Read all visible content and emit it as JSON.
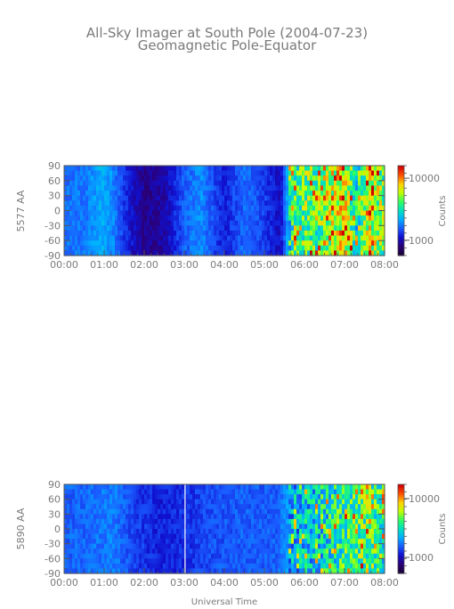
{
  "title": "All-Sky Imager at South Pole (2004-07-23)",
  "subtitle": "Geomagnetic Pole-Equator",
  "xlabel": "Universal Time",
  "colorbar_label": "Counts",
  "colormap": [
    "#1a0038",
    "#2a007a",
    "#1010d0",
    "#1a5cff",
    "#00b0ff",
    "#00e0c0",
    "#30ff60",
    "#c0ff00",
    "#ffd000",
    "#ff5000",
    "#d00000"
  ],
  "chart_data": [
    {
      "type": "heatmap",
      "ylabel": "5577 AA",
      "x_ticks": [
        "00:00",
        "01:00",
        "02:00",
        "03:00",
        "04:00",
        "05:00",
        "06:00",
        "07:00",
        "08:00"
      ],
      "y_ticks": [
        90,
        60,
        30,
        0,
        -30,
        -60,
        -90
      ],
      "ylim": [
        -90,
        90
      ],
      "xlim_hours": [
        0,
        8
      ],
      "colorbar_ticks": [
        "10000",
        "1000"
      ],
      "colorbar_log": true,
      "intensity_profile": [
        {
          "t": 0.0,
          "v": 0.32
        },
        {
          "t": 0.6,
          "v": 0.34
        },
        {
          "t": 0.9,
          "v": 0.4
        },
        {
          "t": 1.2,
          "v": 0.36
        },
        {
          "t": 1.6,
          "v": 0.22
        },
        {
          "t": 2.0,
          "v": 0.12
        },
        {
          "t": 2.5,
          "v": 0.15
        },
        {
          "t": 3.0,
          "v": 0.3
        },
        {
          "t": 3.4,
          "v": 0.36
        },
        {
          "t": 3.8,
          "v": 0.26
        },
        {
          "t": 4.0,
          "v": 0.22
        },
        {
          "t": 4.5,
          "v": 0.32
        },
        {
          "t": 5.0,
          "v": 0.26
        },
        {
          "t": 5.4,
          "v": 0.18
        },
        {
          "t": 5.7,
          "v": 0.55
        },
        {
          "t": 6.0,
          "v": 0.62
        },
        {
          "t": 6.3,
          "v": 0.58
        },
        {
          "t": 6.6,
          "v": 0.66
        },
        {
          "t": 7.0,
          "v": 0.75
        },
        {
          "t": 7.3,
          "v": 0.5
        },
        {
          "t": 7.6,
          "v": 0.72
        },
        {
          "t": 8.0,
          "v": 0.62
        }
      ]
    },
    {
      "type": "heatmap",
      "ylabel": "5890 AA",
      "x_ticks": [
        "00:00",
        "01:00",
        "02:00",
        "03:00",
        "04:00",
        "05:00",
        "06:00",
        "07:00",
        "08:00"
      ],
      "y_ticks": [
        90,
        60,
        30,
        0,
        -30,
        -60,
        -90
      ],
      "ylim": [
        -90,
        90
      ],
      "xlim_hours": [
        0,
        8
      ],
      "colorbar_ticks": [
        "10000",
        "1000"
      ],
      "colorbar_log": true,
      "intensity_profile": [
        {
          "t": 0.0,
          "v": 0.3
        },
        {
          "t": 0.7,
          "v": 0.32
        },
        {
          "t": 1.2,
          "v": 0.34
        },
        {
          "t": 1.8,
          "v": 0.26
        },
        {
          "t": 2.4,
          "v": 0.22
        },
        {
          "t": 3.0,
          "v": 0.24
        },
        {
          "t": 3.6,
          "v": 0.28
        },
        {
          "t": 4.5,
          "v": 0.3
        },
        {
          "t": 5.3,
          "v": 0.3
        },
        {
          "t": 5.7,
          "v": 0.4
        },
        {
          "t": 6.3,
          "v": 0.45
        },
        {
          "t": 7.0,
          "v": 0.55
        },
        {
          "t": 7.6,
          "v": 0.6
        },
        {
          "t": 8.0,
          "v": 0.5
        }
      ]
    }
  ]
}
